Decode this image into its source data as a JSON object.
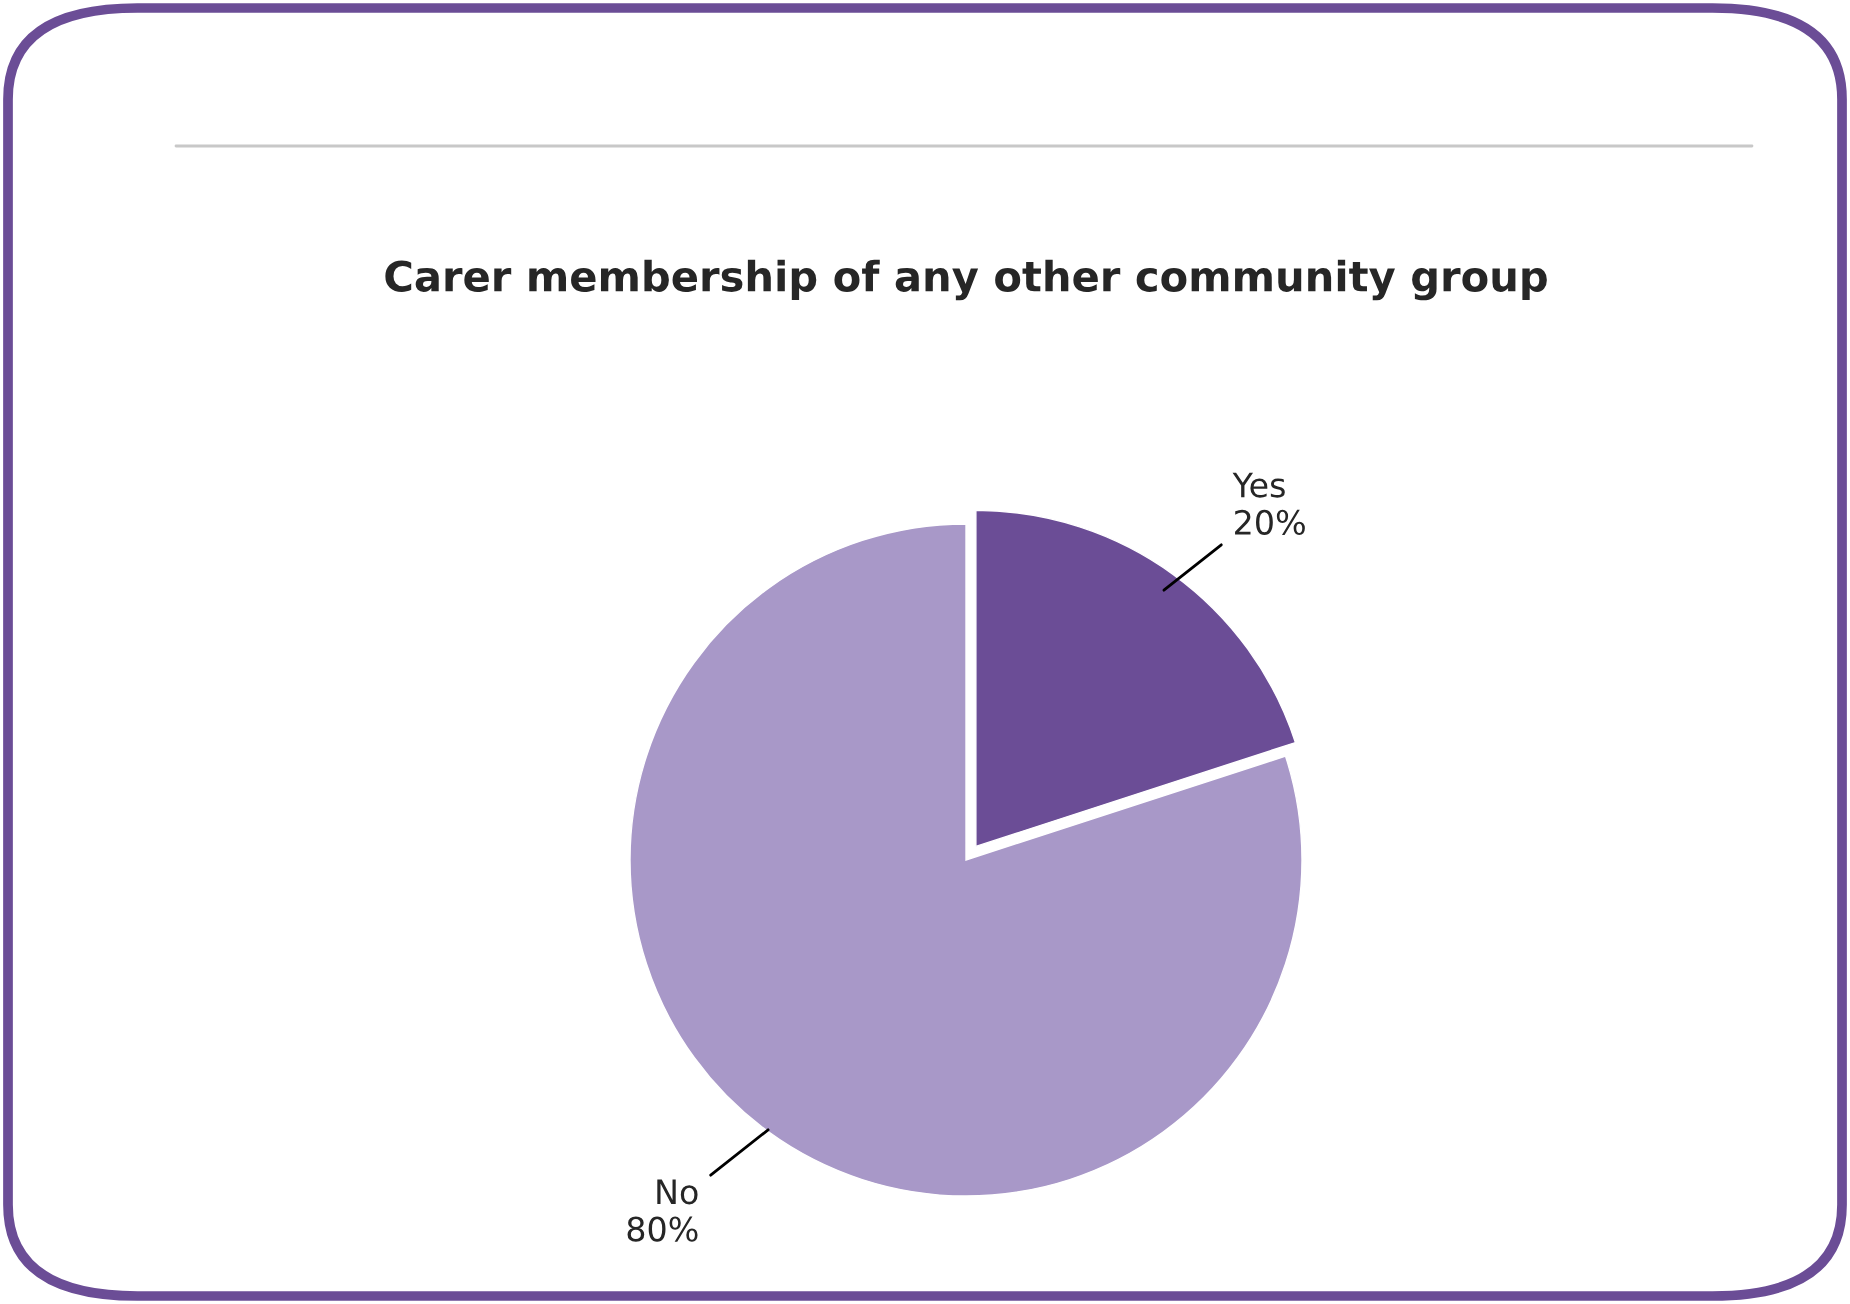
{
  "chart_data": {
    "type": "pie",
    "title": "Carer membership of any other community group",
    "categories": [
      "Yes",
      "No"
    ],
    "values": [
      20,
      80
    ],
    "colors": [
      "#6b4d96",
      "#a898c8"
    ],
    "value_labels": [
      "20%",
      "80%"
    ]
  }
}
